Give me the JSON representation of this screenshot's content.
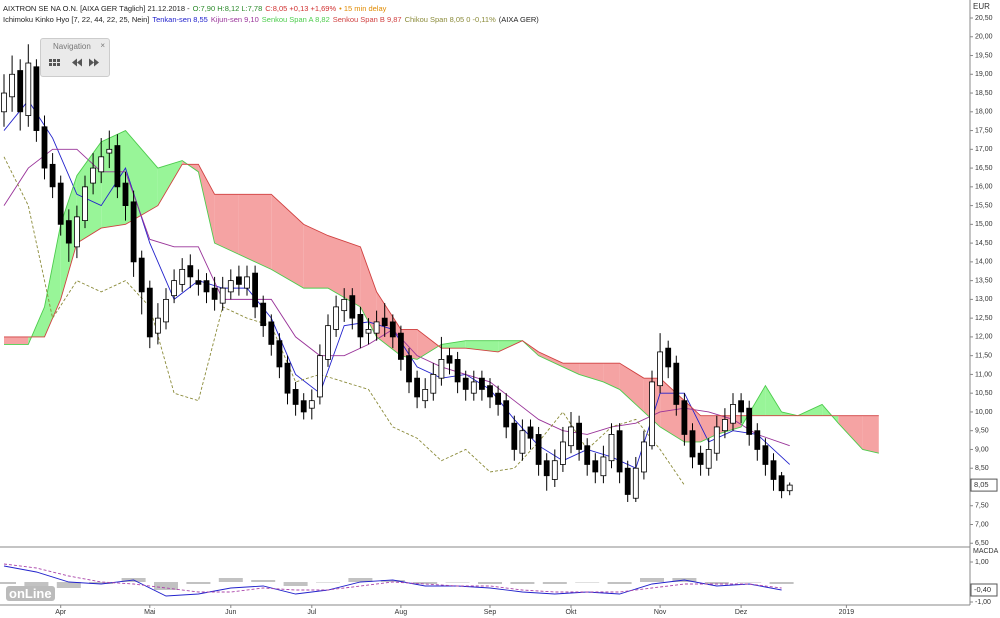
{
  "header": {
    "symbol": "AIXTRON SE NA O.N. [AIXA GER Täglich] 21.12.2018 -",
    "ohlc": "O:7,90 H:8,12 L:7,78",
    "change": "C:8,05 +0,13 +1,69%",
    "delay": "• 15 min delay",
    "indicator": "Ichimoku Kinko Hyo [7, 22, 44, 22, 25, Nein]",
    "exchange": "(AIXA GER)"
  },
  "navigation": {
    "title": "Navigation",
    "close": "×"
  },
  "watermark": "onLine",
  "chart_data": {
    "type": "candlestick",
    "currency": "EUR",
    "last_price_label": "8,05",
    "up_color": "#ffffff",
    "down_color": "#000000",
    "open": [
      18.0,
      18.4,
      19.1,
      17.9,
      19.2,
      17.6,
      16.6,
      16.1,
      15.1,
      14.4,
      15.1,
      16.1,
      16.4,
      16.9,
      17.1,
      16.1,
      15.6,
      14.1,
      13.3,
      12.1,
      12.4,
      13.1,
      13.4,
      13.9,
      13.5,
      13.5,
      13.3,
      12.9,
      13.2,
      13.6,
      13.3,
      13.7,
      12.9,
      12.4,
      11.9,
      11.3,
      10.6,
      10.3,
      10.1,
      10.4,
      11.4,
      12.2,
      12.7,
      13.1,
      12.6,
      12.1,
      12.1,
      12.5,
      12.4,
      12.1,
      11.5,
      10.9,
      10.3,
      10.5,
      10.9,
      11.5,
      11.4,
      10.9,
      10.5,
      10.9,
      10.7,
      10.5,
      10.3,
      9.7,
      8.9,
      9.6,
      9.4,
      8.7,
      8.2,
      8.6,
      9.1,
      9.7,
      9.1,
      8.7,
      8.3,
      8.7,
      9.5,
      8.5,
      7.7,
      8.4,
      9.1,
      10.7,
      11.7,
      11.3,
      10.3,
      9.5,
      8.9,
      8.5,
      8.9,
      9.5,
      9.7,
      10.3,
      10.1,
      9.5,
      9.1,
      8.7,
      8.3,
      7.9
    ],
    "high": [
      19.0,
      19.5,
      19.4,
      19.8,
      19.4,
      17.9,
      16.9,
      16.3,
      15.4,
      15.5,
      16.3,
      16.9,
      17.3,
      17.5,
      17.4,
      16.4,
      15.9,
      14.3,
      13.5,
      12.9,
      13.3,
      13.8,
      14.1,
      14.2,
      13.8,
      13.7,
      13.6,
      13.6,
      13.8,
      13.9,
      13.9,
      13.9,
      13.1,
      12.6,
      12.1,
      11.5,
      10.8,
      10.5,
      10.6,
      11.8,
      12.6,
      13.1,
      13.3,
      13.3,
      12.8,
      12.5,
      12.7,
      12.9,
      12.6,
      12.3,
      11.7,
      11.1,
      10.9,
      11.3,
      12.0,
      11.7,
      11.6,
      11.1,
      11.1,
      11.1,
      10.9,
      10.7,
      10.5,
      9.9,
      9.8,
      9.8,
      9.6,
      8.9,
      9.0,
      9.6,
      10.0,
      9.9,
      9.3,
      8.9,
      9.1,
      9.7,
      9.7,
      8.7,
      8.8,
      9.5,
      11.1,
      12.1,
      11.9,
      11.5,
      10.5,
      9.7,
      9.1,
      9.3,
      9.9,
      10.1,
      10.5,
      10.5,
      10.3,
      9.7,
      9.3,
      8.9,
      8.4,
      8.12
    ],
    "low": [
      17.6,
      18.0,
      17.5,
      17.6,
      17.2,
      16.2,
      15.7,
      14.7,
      14.0,
      14.1,
      14.9,
      15.8,
      16.1,
      16.5,
      15.7,
      15.1,
      13.6,
      12.6,
      11.7,
      11.8,
      12.2,
      12.9,
      13.2,
      13.3,
      13.1,
      12.9,
      12.7,
      12.7,
      13.0,
      13.1,
      13.1,
      12.5,
      12.0,
      11.5,
      10.9,
      10.2,
      9.9,
      9.8,
      9.8,
      10.2,
      11.2,
      12.0,
      12.4,
      12.2,
      11.7,
      11.8,
      11.9,
      12.0,
      11.7,
      11.1,
      10.5,
      10.1,
      10.1,
      10.3,
      10.7,
      11.0,
      10.5,
      10.3,
      10.3,
      10.3,
      10.1,
      9.9,
      9.3,
      8.7,
      8.7,
      9.0,
      8.3,
      7.9,
      8.0,
      8.4,
      8.9,
      8.7,
      8.3,
      8.1,
      8.1,
      8.5,
      8.1,
      7.6,
      7.6,
      8.2,
      9.0,
      10.5,
      10.9,
      9.9,
      9.1,
      8.5,
      8.3,
      8.3,
      8.7,
      9.3,
      9.5,
      9.7,
      9.1,
      8.7,
      8.3,
      7.9,
      7.7,
      7.78
    ],
    "close": [
      18.5,
      19.0,
      18.0,
      19.3,
      17.5,
      16.5,
      16.0,
      15.0,
      14.5,
      15.2,
      16.0,
      16.5,
      16.8,
      17.0,
      16.0,
      15.5,
      14.0,
      13.2,
      12.0,
      12.5,
      13.0,
      13.5,
      13.8,
      13.6,
      13.4,
      13.2,
      13.0,
      13.3,
      13.5,
      13.4,
      13.6,
      12.8,
      12.3,
      11.8,
      11.2,
      10.5,
      10.2,
      10.0,
      10.3,
      11.5,
      12.3,
      12.8,
      13.0,
      12.5,
      12.0,
      12.2,
      12.4,
      12.3,
      12.0,
      11.4,
      10.8,
      10.4,
      10.6,
      11.0,
      11.4,
      11.3,
      10.8,
      10.6,
      10.8,
      10.6,
      10.4,
      10.2,
      9.6,
      9.0,
      9.5,
      9.3,
      8.6,
      8.3,
      8.7,
      9.2,
      9.6,
      9.0,
      8.6,
      8.4,
      8.8,
      9.4,
      8.4,
      7.8,
      8.5,
      9.2,
      10.8,
      11.6,
      11.2,
      10.2,
      9.4,
      8.8,
      8.6,
      9.0,
      9.6,
      9.8,
      10.2,
      10.0,
      9.4,
      9.0,
      8.6,
      8.2,
      7.9,
      8.05
    ],
    "series": [
      {
        "name": "Tenkan-sen 8,55",
        "color": "#2222cc",
        "x": [
          0,
          3,
          6,
          9,
          12,
          15,
          18,
          21,
          24,
          27,
          30,
          33,
          36,
          39,
          42,
          45,
          48,
          51,
          54,
          57,
          60,
          63,
          66,
          69,
          72,
          75,
          78,
          81,
          84,
          87,
          90,
          93,
          97
        ],
        "values": [
          17.5,
          18.3,
          17.3,
          15.8,
          15.5,
          16.5,
          14.5,
          13.0,
          13.5,
          13.3,
          13.3,
          12.5,
          11.0,
          10.5,
          12.3,
          12.4,
          12.2,
          11.2,
          10.9,
          11.0,
          10.6,
          9.8,
          9.1,
          8.7,
          9.0,
          8.8,
          8.5,
          10.5,
          10.5,
          9.2,
          9.5,
          9.4,
          8.6
        ]
      },
      {
        "name": "Kijun-sen 9,10",
        "color": "#993399",
        "x": [
          0,
          3,
          6,
          9,
          12,
          15,
          18,
          21,
          24,
          27,
          30,
          33,
          36,
          39,
          42,
          45,
          48,
          51,
          54,
          57,
          60,
          63,
          66,
          69,
          72,
          75,
          78,
          81,
          84,
          87,
          90,
          93,
          97
        ],
        "values": [
          15.5,
          16.5,
          17.0,
          17.0,
          16.4,
          16.4,
          14.6,
          14.4,
          14.4,
          13.0,
          13.0,
          13.0,
          12.0,
          11.5,
          11.5,
          11.8,
          12.2,
          11.5,
          11.2,
          11.0,
          10.8,
          10.3,
          9.8,
          9.5,
          9.4,
          9.6,
          9.7,
          10.0,
          10.1,
          10.0,
          9.8,
          9.4,
          9.1
        ]
      },
      {
        "name": "Senkou Span A 8,82",
        "color": "#4ccc4c",
        "x": [
          0,
          3,
          5,
          7,
          9,
          12,
          15,
          19,
          22,
          24,
          26,
          29,
          33,
          37,
          40,
          44,
          46,
          49,
          51,
          54,
          57,
          61,
          64,
          66,
          69,
          71,
          74,
          76,
          79,
          81,
          84,
          86,
          88,
          91,
          94,
          96,
          98,
          101,
          103,
          106,
          108
        ],
        "values": [
          11.8,
          11.8,
          12.8,
          15.0,
          16.3,
          17.2,
          17.5,
          16.5,
          16.7,
          16.4,
          14.5,
          14.2,
          13.8,
          13.3,
          13.3,
          12.8,
          12.0,
          11.5,
          11.4,
          11.8,
          11.9,
          11.9,
          11.9,
          11.5,
          11.2,
          11.0,
          10.8,
          10.6,
          10.0,
          9.6,
          9.2,
          9.2,
          9.4,
          9.6,
          10.7,
          10.0,
          9.9,
          10.2,
          9.7,
          9.0,
          8.9
        ]
      },
      {
        "name": "Senkou Span B 9,87",
        "color": "#d04040",
        "x": [
          0,
          3,
          5,
          7,
          9,
          12,
          15,
          19,
          22,
          24,
          26,
          29,
          33,
          37,
          40,
          44,
          46,
          49,
          51,
          54,
          57,
          61,
          64,
          66,
          69,
          71,
          74,
          76,
          79,
          81,
          84,
          86,
          88,
          91,
          94,
          96,
          98,
          101,
          103,
          106,
          108
        ],
        "values": [
          12.0,
          12.0,
          12.0,
          13.0,
          14.5,
          14.9,
          15.0,
          15.5,
          16.6,
          16.6,
          15.8,
          15.8,
          15.8,
          15.0,
          14.7,
          14.4,
          13.2,
          12.2,
          12.2,
          11.7,
          11.7,
          11.6,
          11.9,
          11.6,
          11.3,
          11.3,
          11.3,
          11.3,
          10.9,
          10.9,
          10.3,
          9.9,
          9.9,
          9.9,
          9.9,
          9.9,
          9.9,
          9.9,
          9.9,
          9.9,
          9.9
        ]
      },
      {
        "name": "Chikou Span 8,05 0 -0,11%",
        "color": "#8b8b3a",
        "dashed": true,
        "x": [
          0,
          3,
          6,
          9,
          12,
          15,
          18,
          21,
          24,
          27,
          30,
          33,
          36,
          39,
          42,
          45,
          48,
          51,
          54,
          57,
          60,
          63,
          66,
          69,
          72,
          75,
          78,
          81,
          84
        ],
        "values": [
          16.8,
          15.5,
          12.5,
          13.5,
          13.2,
          13.5,
          12.8,
          10.5,
          10.3,
          12.8,
          12.5,
          12.3,
          10.8,
          11.0,
          10.8,
          10.6,
          9.6,
          9.3,
          8.7,
          9.0,
          8.4,
          8.5,
          9.2,
          10.0,
          9.0,
          9.6,
          9.8,
          9.0,
          8.05
        ]
      }
    ],
    "cloud_up_color": "#98f598",
    "cloud_down_color": "#f5a3a3",
    "ylim": [
      6.4,
      20.9
    ],
    "yticks": [
      {
        "value": 6.5,
        "label": "6,50"
      },
      {
        "value": 7,
        "label": "7,00"
      },
      {
        "value": 7.5,
        "label": "7,50"
      },
      {
        "value": 8,
        "label": "8,00"
      },
      {
        "value": 8.5,
        "label": "8,50"
      },
      {
        "value": 9,
        "label": "9,00"
      },
      {
        "value": 9.5,
        "label": "9,50"
      },
      {
        "value": 10,
        "label": "10,00"
      },
      {
        "value": 10.5,
        "label": "10,50"
      },
      {
        "value": 11,
        "label": "11,00"
      },
      {
        "value": 11.5,
        "label": "11,50"
      },
      {
        "value": 12,
        "label": "12,00"
      },
      {
        "value": 12.5,
        "label": "12,50"
      },
      {
        "value": 13,
        "label": "13,00"
      },
      {
        "value": 13.5,
        "label": "13,50"
      },
      {
        "value": 14,
        "label": "14,00"
      },
      {
        "value": 14.5,
        "label": "14,50"
      },
      {
        "value": 15,
        "label": "15,00"
      },
      {
        "value": 15.5,
        "label": "15,50"
      },
      {
        "value": 16,
        "label": "16,00"
      },
      {
        "value": 16.5,
        "label": "16,50"
      },
      {
        "value": 17,
        "label": "17,00"
      },
      {
        "value": 17.5,
        "label": "17,50"
      },
      {
        "value": 18,
        "label": "18,00"
      },
      {
        "value": 18.5,
        "label": "18,50"
      },
      {
        "value": 19,
        "label": "19,00"
      },
      {
        "value": 19.5,
        "label": "19,50"
      },
      {
        "value": 20,
        "label": "20,00"
      },
      {
        "value": 20.5,
        "label": "20,50"
      }
    ],
    "xticks": [
      {
        "value": 7,
        "label": "Apr"
      },
      {
        "value": 18,
        "label": "Mai"
      },
      {
        "value": 28,
        "label": "Jun"
      },
      {
        "value": 38,
        "label": "Jul"
      },
      {
        "value": 49,
        "label": "Aug"
      },
      {
        "value": 60,
        "label": "Sep"
      },
      {
        "value": 70,
        "label": "Okt"
      },
      {
        "value": 81,
        "label": "Nov"
      },
      {
        "value": 91,
        "label": "Dez"
      },
      {
        "value": 104,
        "label": "2019"
      }
    ],
    "macd": {
      "title": "MACDA",
      "last_label": "-0,40",
      "last_value": -0.4,
      "x": [
        0,
        4,
        8,
        12,
        16,
        20,
        24,
        28,
        32,
        36,
        40,
        44,
        48,
        52,
        56,
        60,
        64,
        68,
        72,
        76,
        80,
        84,
        88,
        92,
        96
      ],
      "line": {
        "color": "#2222cc",
        "values": [
          0.8,
          0.5,
          0.0,
          -0.1,
          0.1,
          -0.7,
          -0.6,
          -0.3,
          -0.2,
          -0.6,
          -0.4,
          0.0,
          0.1,
          -0.2,
          -0.2,
          -0.3,
          -0.5,
          -0.6,
          -0.5,
          -0.6,
          -0.1,
          0.1,
          -0.2,
          -0.1,
          -0.4
        ]
      },
      "signal": {
        "color": "#aa44aa",
        "values": [
          0.9,
          0.7,
          0.3,
          0.0,
          -0.1,
          -0.3,
          -0.5,
          -0.5,
          -0.3,
          -0.4,
          -0.4,
          -0.2,
          0.0,
          -0.1,
          -0.2,
          -0.2,
          -0.4,
          -0.5,
          -0.5,
          -0.5,
          -0.3,
          -0.1,
          -0.1,
          -0.1,
          -0.3
        ]
      },
      "histogram": {
        "color": "#999999",
        "values": [
          -0.1,
          -0.2,
          -0.3,
          -0.1,
          0.2,
          -0.4,
          -0.1,
          0.2,
          0.1,
          -0.2,
          0.0,
          0.2,
          0.1,
          -0.1,
          0.0,
          -0.1,
          -0.1,
          -0.1,
          0.0,
          -0.1,
          0.2,
          0.2,
          -0.1,
          0.0,
          -0.1
        ]
      },
      "ylim": [
        -1.15,
        1.7
      ],
      "yticks": [
        {
          "value": 1,
          "label": "1,00"
        },
        {
          "value": -1,
          "label": "-1,00"
        }
      ]
    }
  }
}
